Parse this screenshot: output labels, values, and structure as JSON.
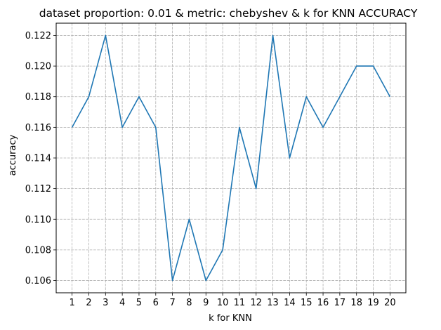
{
  "chart_data": {
    "type": "line",
    "title": "dataset proportion: 0.01 & metric: chebyshev & k for KNN ACCURACY",
    "xlabel": "k for KNN",
    "ylabel": "accuracy",
    "x": [
      1,
      2,
      3,
      4,
      5,
      6,
      7,
      8,
      9,
      10,
      11,
      12,
      13,
      14,
      15,
      16,
      17,
      18,
      19,
      20
    ],
    "series": [
      {
        "values": [
          0.116,
          0.118,
          0.122,
          0.116,
          0.118,
          0.116,
          0.106,
          0.11,
          0.106,
          0.108,
          0.116,
          0.112,
          0.122,
          0.114,
          0.118,
          0.116,
          0.118,
          0.12,
          0.12,
          0.118
        ],
        "color": "#1f77b4"
      }
    ],
    "xlim": [
      0.05,
      20.95
    ],
    "ylim": [
      0.1052,
      0.1228
    ],
    "yticks": [
      "0.106",
      "0.108",
      "0.110",
      "0.112",
      "0.114",
      "0.116",
      "0.118",
      "0.120",
      "0.122"
    ],
    "grid": true,
    "grid_color": "#b0b0b0"
  }
}
